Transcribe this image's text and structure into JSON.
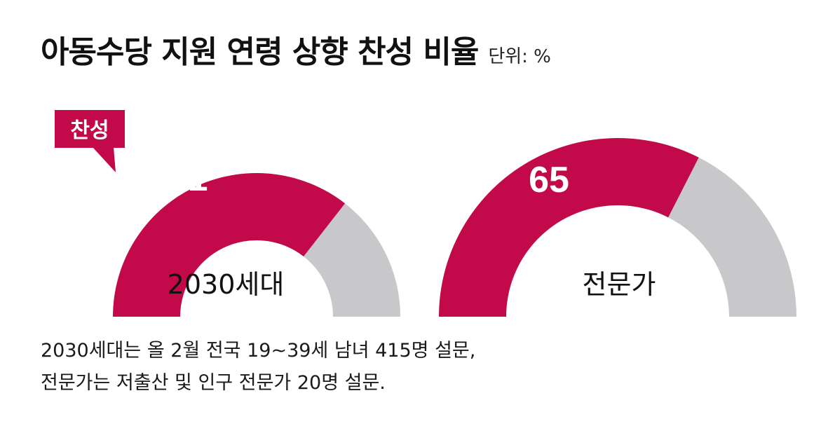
{
  "title": "아동수당 지원 연령 상향 찬성 비율",
  "unit": "단위: %",
  "callout": "찬성",
  "notes": [
    "2030세대는 올 2월 전국 19~39세 남녀 415명 설문,",
    "전문가는 저출산 및 인구 전문가 20명 설문."
  ],
  "colors": {
    "approve": "#c20a4a",
    "rest": "#c8c8ca",
    "value_text": "#ffffff",
    "label_text": "#111111"
  },
  "chart_data": [
    {
      "type": "pie",
      "subtype": "half-donut gauge",
      "title": "",
      "series": [
        {
          "name": "찬성",
          "values": [
            71.1
          ]
        }
      ],
      "center_label": "2030세대",
      "value_label": "71.1",
      "ylim": [
        0,
        100
      ]
    },
    {
      "type": "pie",
      "subtype": "half-donut gauge",
      "title": "",
      "series": [
        {
          "name": "찬성",
          "values": [
            65
          ]
        }
      ],
      "center_label": "전문가",
      "value_label": "65",
      "ylim": [
        0,
        100
      ]
    }
  ]
}
